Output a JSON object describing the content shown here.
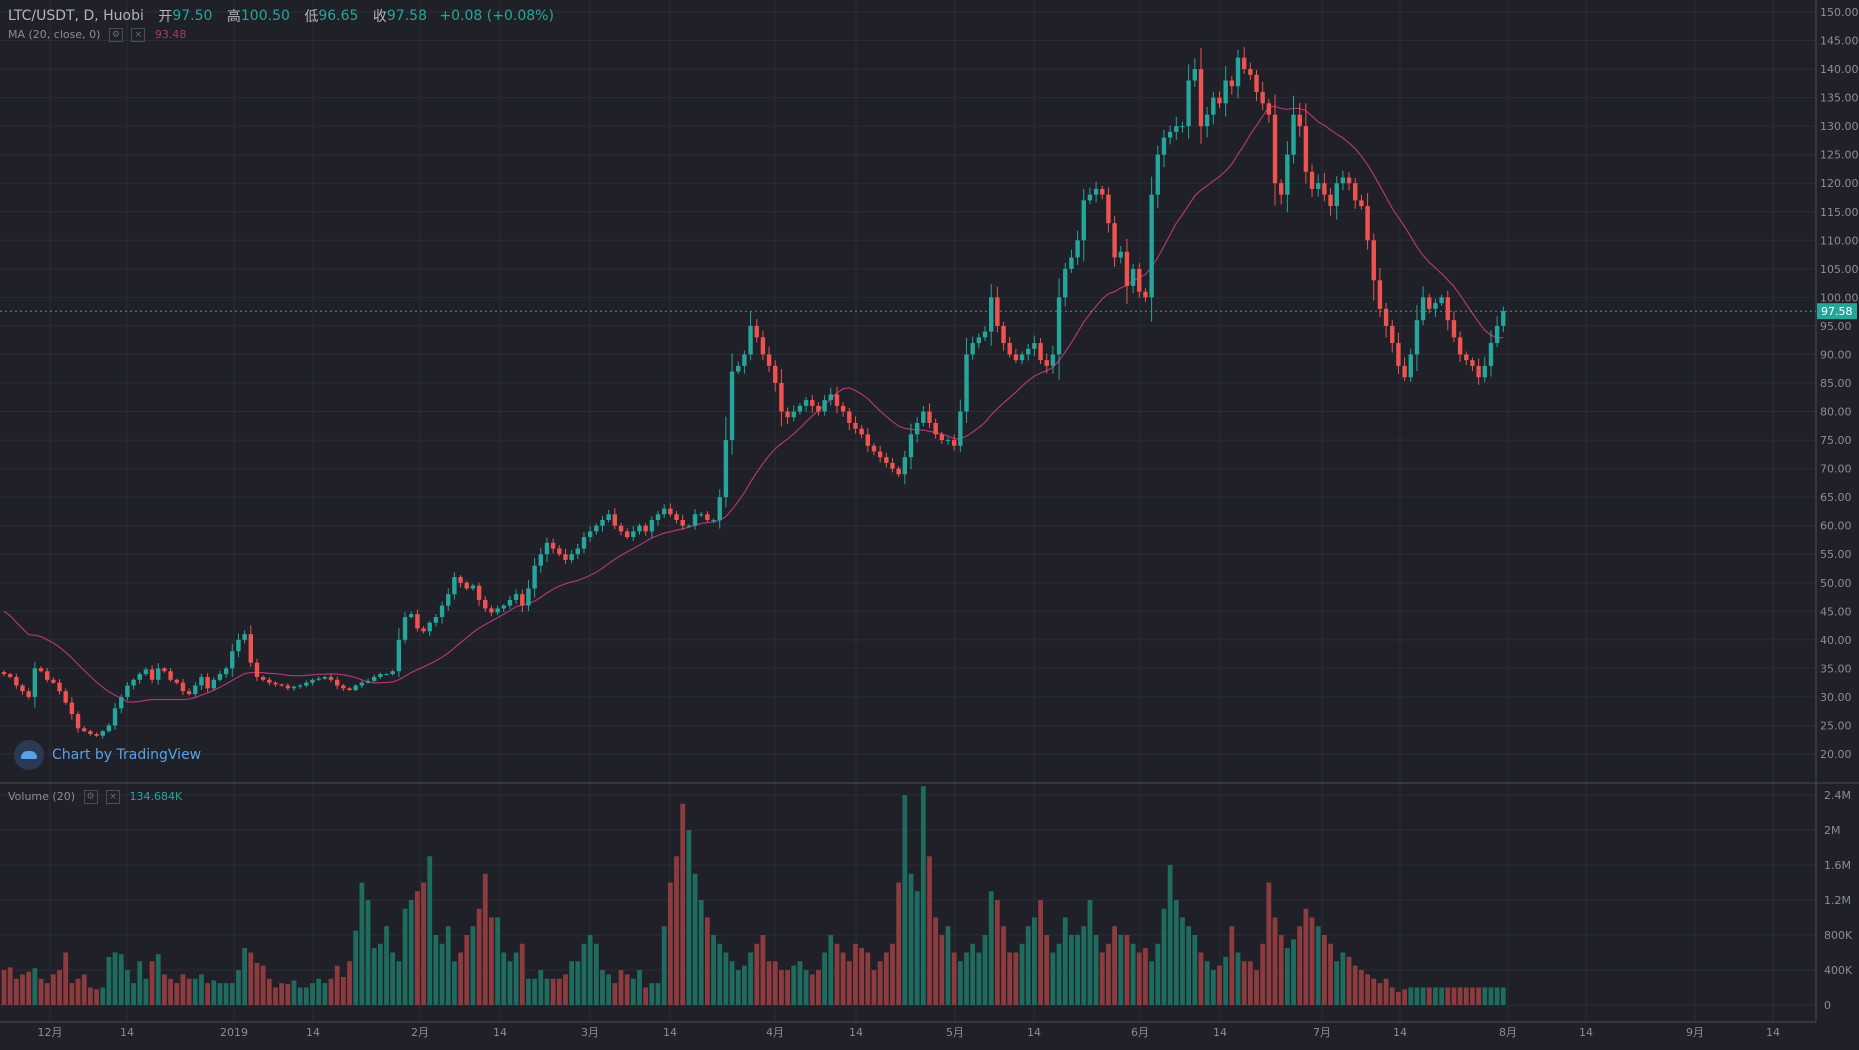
{
  "legend": {
    "symbol": "LTC/USDT, D, Huobi",
    "open_label": "开",
    "open": "97.50",
    "high_label": "高",
    "high": "100.50",
    "low_label": "低",
    "low": "96.65",
    "close_label": "收",
    "close": "97.58",
    "change": "+0.08 (+0.08%)"
  },
  "ma_indicator": {
    "label": "MA (20, close, 0)",
    "value": "93.48"
  },
  "volume_indicator": {
    "label": "Volume (20)",
    "value": "134.684K"
  },
  "watermark": "Chart by TradingView",
  "colors": {
    "up": "#26a69a",
    "down": "#ef5350",
    "ma": "#b0357a",
    "price_line": "#26a69a",
    "background": "#1f2028",
    "grid": "#2a2d37"
  },
  "chart_data": [
    {
      "type": "candlestick",
      "title": "LTC/USDT, D, Huobi",
      "ylim": [
        17.5,
        152.5
      ],
      "y_ticks": [
        "20.00",
        "25.00",
        "30.00",
        "35.00",
        "40.00",
        "45.00",
        "50.00",
        "55.00",
        "60.00",
        "65.00",
        "70.00",
        "75.00",
        "80.00",
        "85.00",
        "90.00",
        "95.00",
        "100.00",
        "105.00",
        "110.00",
        "115.00",
        "120.00",
        "125.00",
        "130.00",
        "135.00",
        "140.00",
        "145.00",
        "150.00"
      ],
      "x_ticks": [
        "12月",
        "14",
        "2019",
        "14",
        "2月",
        "14",
        "3月",
        "14",
        "4月",
        "14",
        "5月",
        "14",
        "6月",
        "14",
        "7月",
        "14",
        "8月",
        "14",
        "9月",
        "14"
      ],
      "last_price_label": "97.58",
      "price_path": [
        34,
        33.5,
        32,
        31,
        30,
        35,
        34.5,
        33,
        32.5,
        31,
        29,
        27,
        24.5,
        24,
        23.5,
        23.2,
        24,
        25,
        28,
        30,
        32,
        33,
        34,
        34.8,
        33,
        35,
        34.5,
        33,
        32.5,
        31,
        30.5,
        32,
        33.5,
        31.5,
        33,
        34,
        35,
        38,
        40,
        41,
        36,
        33.5,
        33,
        32.5,
        32.2,
        32,
        31.5,
        31.8,
        32,
        32.5,
        33,
        33.2,
        33.5,
        33,
        32,
        31.5,
        31.2,
        32,
        32.5,
        32.8,
        33.5,
        34,
        34,
        34.5,
        40,
        44,
        44.5,
        42,
        41.5,
        43,
        44,
        46,
        48,
        51,
        50,
        49,
        49.5,
        47,
        45.5,
        44.8,
        45.5,
        46,
        47,
        48,
        46,
        49,
        53,
        55,
        57,
        56,
        55,
        54,
        55,
        56,
        58,
        59,
        60,
        61,
        62,
        60,
        59,
        58,
        59,
        60,
        59,
        61,
        62,
        63,
        62,
        61,
        60,
        60,
        62,
        62,
        61,
        61,
        65,
        75,
        87,
        88,
        90,
        95,
        93,
        90,
        88,
        85,
        80,
        79,
        80,
        81,
        82,
        81,
        80,
        82,
        83,
        81,
        80,
        78,
        77,
        76,
        74,
        73,
        72,
        71,
        70,
        69,
        72,
        76,
        78,
        80,
        78,
        76,
        75,
        75,
        74,
        80,
        90,
        92,
        93,
        94,
        100,
        95,
        92,
        90,
        89,
        90,
        91,
        92,
        89,
        88,
        90,
        100,
        105,
        107,
        110,
        117,
        118,
        119,
        118,
        113,
        107,
        108,
        102,
        105,
        101,
        100,
        118,
        125,
        128,
        129,
        130,
        130,
        138,
        140,
        130,
        132,
        135,
        134,
        138,
        137,
        142,
        140,
        139,
        136,
        134,
        132,
        120,
        118,
        125,
        132,
        130,
        122,
        119,
        120,
        118,
        116,
        120,
        121,
        120,
        117,
        116,
        110,
        103,
        98,
        95,
        92,
        88,
        86,
        90,
        96,
        100,
        98,
        99,
        100,
        96,
        93,
        90,
        89,
        88,
        86,
        88,
        92,
        95,
        97.58
      ],
      "volume_path": [
        400,
        430,
        300,
        350,
        380,
        420,
        300,
        250,
        350,
        400,
        600,
        250,
        300,
        350,
        200,
        180,
        200,
        550,
        600,
        580,
        400,
        250,
        500,
        300,
        500,
        580,
        350,
        300,
        250,
        350,
        300,
        300,
        350,
        250,
        280,
        250,
        250,
        250,
        400,
        650,
        600,
        480,
        450,
        300,
        200,
        250,
        240,
        280,
        200,
        200,
        250,
        300,
        250,
        300,
        450,
        320,
        500,
        850,
        1400,
        1200,
        650,
        700,
        900,
        600,
        500,
        1100,
        1200,
        1300,
        1400,
        1700,
        800,
        700,
        900,
        500,
        600,
        800,
        900,
        1100,
        1500,
        1000,
        1000,
        600,
        500,
        600,
        700,
        300,
        300,
        400,
        300,
        300,
        300,
        350,
        500,
        500,
        700,
        800,
        700,
        400,
        350,
        250,
        400,
        350,
        300,
        400,
        200,
        250,
        250,
        900,
        1400,
        1700,
        2300,
        2000,
        1500,
        1200,
        1000,
        800,
        700,
        600,
        500,
        400,
        450,
        600,
        700,
        800,
        500,
        500,
        400,
        400,
        450,
        500,
        400,
        350,
        400,
        600,
        800,
        700,
        600,
        500,
        700,
        650,
        600,
        400,
        500,
        600,
        700,
        1400,
        2400,
        1500,
        1300,
        2500,
        1700,
        1000,
        800,
        900,
        600,
        500,
        600,
        700,
        600,
        800,
        1300,
        1200,
        900,
        600,
        600,
        700,
        900,
        1000,
        1200,
        800,
        600,
        700,
        1000,
        800,
        800,
        900,
        1200,
        800,
        600,
        700,
        900,
        800,
        800,
        700,
        600,
        650,
        500,
        700,
        1100,
        1600,
        1200,
        1000,
        900,
        800,
        600,
        500,
        400,
        450,
        550,
        900,
        600,
        500,
        500,
        400,
        700,
        1400,
        1000,
        800,
        650,
        750,
        900,
        1100,
        1000,
        900,
        800,
        700,
        500,
        600,
        550,
        450,
        400,
        350,
        300,
        250,
        300,
        200,
        150,
        180
      ]
    },
    {
      "type": "bar",
      "title": "Volume (20)",
      "ylim": [
        0,
        2500000
      ],
      "y_ticks": [
        "0",
        "400K",
        "800K",
        "1.2M",
        "1.6M",
        "2M",
        "2.4M"
      ]
    }
  ]
}
